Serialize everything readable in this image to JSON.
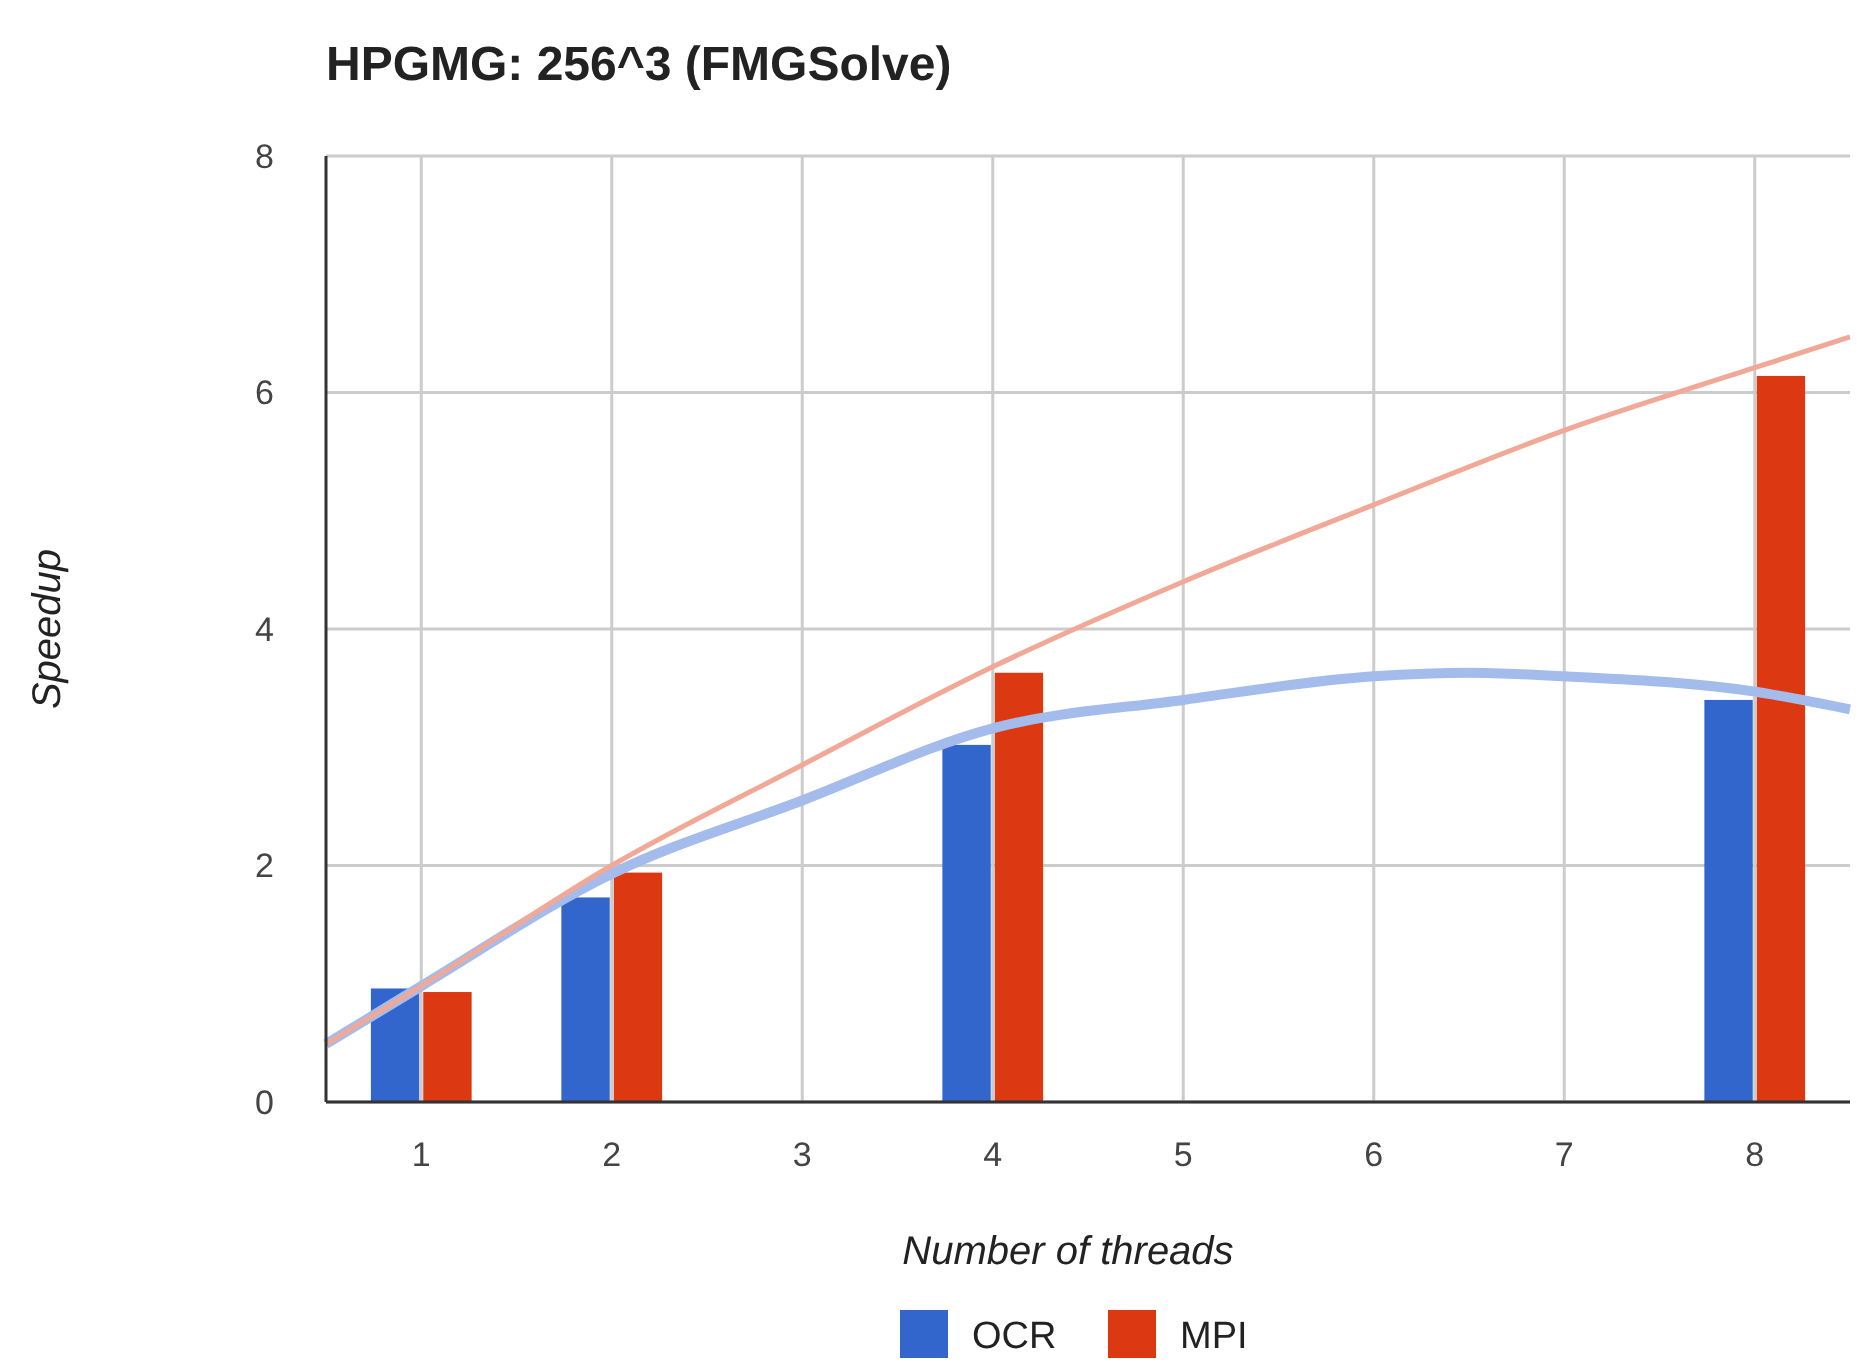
{
  "chart_data": {
    "type": "bar",
    "title": "HPGMG: 256^3 (FMGSolve)",
    "xlabel": "Number of threads",
    "ylabel": "Speedup",
    "x": [
      1,
      2,
      4,
      8
    ],
    "series": [
      {
        "name": "OCR",
        "color": "#3366cc",
        "values": [
          0.96,
          1.73,
          3.02,
          3.4
        ]
      },
      {
        "name": "MPI",
        "color": "#dc3912",
        "values": [
          0.93,
          1.94,
          3.63,
          6.14
        ]
      },
      {
        "type": "line",
        "color": "#a4bcec",
        "x": [
          0.5,
          1,
          2,
          3,
          4,
          5,
          6,
          6.5,
          7,
          8,
          8.5
        ],
        "values": [
          0.49,
          0.98,
          1.93,
          2.55,
          3.16,
          3.4,
          3.6,
          3.63,
          3.6,
          3.47,
          3.32
        ]
      },
      {
        "type": "line",
        "color": "#f1a896",
        "x": [
          0.5,
          1,
          2,
          3,
          4,
          5,
          6,
          7,
          8,
          8.5
        ],
        "values": [
          0.49,
          0.98,
          2.0,
          2.85,
          3.68,
          4.4,
          5.05,
          5.68,
          6.21,
          6.47
        ]
      }
    ],
    "xlim": [
      0.5,
      8.5
    ],
    "xticks": [
      1,
      2,
      3,
      4,
      5,
      6,
      7,
      8
    ],
    "ylim": [
      0,
      8
    ],
    "yticks": [
      0,
      2,
      4,
      6,
      8
    ],
    "grid": true,
    "legend": "bottom"
  }
}
